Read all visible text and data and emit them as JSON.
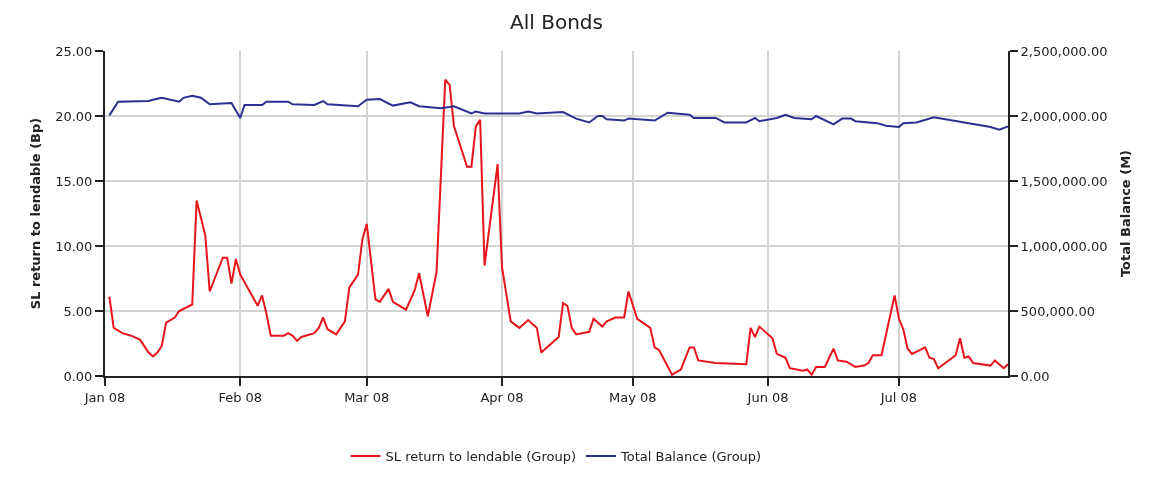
{
  "chart_data": {
    "type": "line",
    "title": "All Bonds",
    "ylabel": "SL return to lendable (Bp)",
    "y2label": "Total Balance (M)",
    "xlim": [
      "2008-01-01",
      "2008-07-26"
    ],
    "xticks": [
      {
        "value": "2008-01-01",
        "label": "Jan 08"
      },
      {
        "value": "2008-02-01",
        "label": "Feb 08"
      },
      {
        "value": "2008-03-01",
        "label": "Mar 08"
      },
      {
        "value": "2008-04-01",
        "label": "Apr 08"
      },
      {
        "value": "2008-05-01",
        "label": "May 08"
      },
      {
        "value": "2008-06-01",
        "label": "Jun 08"
      },
      {
        "value": "2008-07-01",
        "label": "Jul 08"
      }
    ],
    "ylim": [
      0,
      25
    ],
    "yticks": [
      {
        "value": 0,
        "label": "0.00"
      },
      {
        "value": 5,
        "label": "5.00"
      },
      {
        "value": 10,
        "label": "10.00"
      },
      {
        "value": 15,
        "label": "15.00"
      },
      {
        "value": 20,
        "label": "20.00"
      },
      {
        "value": 25,
        "label": "25.00"
      }
    ],
    "y2lim": [
      0,
      2500000
    ],
    "y2ticks": [
      {
        "value": 0,
        "label": "0.00"
      },
      {
        "value": 500000,
        "label": "500,000.00"
      },
      {
        "value": 1000000,
        "label": "1,000,000.00"
      },
      {
        "value": 1500000,
        "label": "1,500,000.00"
      },
      {
        "value": 2000000,
        "label": "2,000,000.00"
      },
      {
        "value": 2500000,
        "label": "2,500,000.00"
      }
    ],
    "grid": true,
    "legend": "bottom",
    "marker": "none",
    "line_style": "solid",
    "series": [
      {
        "name": "SL return to lendable (Group)",
        "color": "#e8141c",
        "x": [
          "2008-01-02",
          "2008-01-03",
          "2008-01-05",
          "2008-01-07",
          "2008-01-09",
          "2008-01-11",
          "2008-01-12",
          "2008-01-13",
          "2008-01-14",
          "2008-01-15",
          "2008-01-17",
          "2008-01-18",
          "2008-01-21",
          "2008-01-22",
          "2008-01-24",
          "2008-01-25",
          "2008-01-28",
          "2008-01-29",
          "2008-01-30",
          "2008-01-31",
          "2008-02-01",
          "2008-02-05",
          "2008-02-06",
          "2008-02-07",
          "2008-02-08",
          "2008-02-11",
          "2008-02-12",
          "2008-02-13",
          "2008-02-14",
          "2008-02-15",
          "2008-02-18",
          "2008-02-19",
          "2008-02-20",
          "2008-02-21",
          "2008-02-23",
          "2008-02-25",
          "2008-02-26",
          "2008-02-28",
          "2008-02-29",
          "2008-03-01",
          "2008-03-03",
          "2008-03-04",
          "2008-03-06",
          "2008-03-07",
          "2008-03-10",
          "2008-03-12",
          "2008-03-13",
          "2008-03-15",
          "2008-03-17",
          "2008-03-19",
          "2008-03-20",
          "2008-03-21",
          "2008-03-24",
          "2008-03-25",
          "2008-03-26",
          "2008-03-27",
          "2008-03-28",
          "2008-03-31",
          "2008-04-01",
          "2008-04-03",
          "2008-04-05",
          "2008-04-07",
          "2008-04-09",
          "2008-04-10",
          "2008-04-14",
          "2008-04-15",
          "2008-04-16",
          "2008-04-17",
          "2008-04-18",
          "2008-04-21",
          "2008-04-22",
          "2008-04-24",
          "2008-04-25",
          "2008-04-27",
          "2008-04-29",
          "2008-04-30",
          "2008-05-02",
          "2008-05-05",
          "2008-05-06",
          "2008-05-07",
          "2008-05-10",
          "2008-05-12",
          "2008-05-14",
          "2008-05-15",
          "2008-05-16",
          "2008-05-20",
          "2008-05-27",
          "2008-05-28",
          "2008-05-29",
          "2008-05-30",
          "2008-06-02",
          "2008-06-03",
          "2008-06-05",
          "2008-06-06",
          "2008-06-09",
          "2008-06-10",
          "2008-06-11",
          "2008-06-12",
          "2008-06-14",
          "2008-06-16",
          "2008-06-17",
          "2008-06-19",
          "2008-06-21",
          "2008-06-23",
          "2008-06-24",
          "2008-06-25",
          "2008-06-27",
          "2008-06-30",
          "2008-07-01",
          "2008-07-02",
          "2008-07-03",
          "2008-07-04",
          "2008-07-07",
          "2008-07-08",
          "2008-07-09",
          "2008-07-10",
          "2008-07-14",
          "2008-07-15",
          "2008-07-16",
          "2008-07-17",
          "2008-07-18",
          "2008-07-22",
          "2008-07-23",
          "2008-07-25",
          "2008-07-26"
        ],
        "values": [
          6.1,
          3.7,
          3.3,
          3.1,
          2.8,
          1.8,
          1.5,
          1.8,
          2.3,
          4.1,
          4.5,
          5.0,
          5.5,
          13.5,
          10.8,
          6.5,
          9.1,
          9.1,
          7.1,
          9.0,
          7.8,
          5.4,
          6.2,
          4.8,
          3.1,
          3.1,
          3.3,
          3.1,
          2.7,
          3.0,
          3.3,
          3.7,
          4.5,
          3.6,
          3.2,
          4.2,
          6.8,
          7.8,
          10.5,
          11.7,
          5.9,
          5.7,
          6.7,
          5.7,
          5.1,
          6.6,
          7.9,
          4.6,
          8.0,
          22.8,
          22.4,
          19.2,
          16.1,
          16.1,
          19.2,
          19.7,
          8.5,
          16.3,
          8.4,
          4.2,
          3.7,
          4.3,
          3.7,
          1.8,
          3.0,
          5.6,
          5.4,
          3.7,
          3.2,
          3.4,
          4.4,
          3.8,
          4.2,
          4.5,
          4.5,
          6.5,
          4.4,
          3.7,
          2.2,
          2.0,
          0.1,
          0.5,
          2.2,
          2.2,
          1.2,
          1.0,
          0.9,
          3.7,
          3.0,
          3.8,
          2.9,
          1.7,
          1.4,
          0.6,
          0.4,
          0.5,
          0.1,
          0.7,
          0.7,
          2.1,
          1.2,
          1.1,
          0.7,
          0.8,
          1.0,
          1.6,
          1.6,
          6.2,
          4.4,
          3.6,
          2.1,
          1.7,
          2.2,
          1.4,
          1.3,
          0.6,
          1.6,
          2.9,
          1.4,
          1.5,
          1.0,
          0.8,
          1.2,
          0.6,
          0.9
        ]
      },
      {
        "name": "Total Balance (Group)",
        "color": "#2b2f8f",
        "axis": "y2",
        "x": [
          "2008-01-02",
          "2008-01-04",
          "2008-01-11",
          "2008-01-12",
          "2008-01-14",
          "2008-01-16",
          "2008-01-18",
          "2008-01-19",
          "2008-01-21",
          "2008-01-23",
          "2008-01-25",
          "2008-01-30",
          "2008-02-01",
          "2008-02-02",
          "2008-02-06",
          "2008-02-07",
          "2008-02-12",
          "2008-02-13",
          "2008-02-18",
          "2008-02-20",
          "2008-02-21",
          "2008-02-28",
          "2008-03-01",
          "2008-03-04",
          "2008-03-07",
          "2008-03-11",
          "2008-03-13",
          "2008-03-18",
          "2008-03-21",
          "2008-03-25",
          "2008-03-26",
          "2008-03-28",
          "2008-04-05",
          "2008-04-07",
          "2008-04-09",
          "2008-04-15",
          "2008-04-18",
          "2008-04-21",
          "2008-04-23",
          "2008-04-24",
          "2008-04-25",
          "2008-04-29",
          "2008-04-30",
          "2008-05-06",
          "2008-05-09",
          "2008-05-14",
          "2008-05-15",
          "2008-05-20",
          "2008-05-22",
          "2008-05-27",
          "2008-05-29",
          "2008-05-30",
          "2008-06-03",
          "2008-06-05",
          "2008-06-07",
          "2008-06-11",
          "2008-06-12",
          "2008-06-16",
          "2008-06-18",
          "2008-06-20",
          "2008-06-21",
          "2008-06-26",
          "2008-06-28",
          "2008-07-01",
          "2008-07-02",
          "2008-07-05",
          "2008-07-09",
          "2008-07-22",
          "2008-07-24",
          "2008-07-26"
        ],
        "values": [
          2005000,
          2110000,
          2115000,
          2125000,
          2140000,
          2125000,
          2110000,
          2140000,
          2155000,
          2140000,
          2090000,
          2100000,
          1985000,
          2085000,
          2085000,
          2110000,
          2110000,
          2090000,
          2085000,
          2115000,
          2090000,
          2075000,
          2125000,
          2130000,
          2080000,
          2105000,
          2075000,
          2060000,
          2075000,
          2020000,
          2035000,
          2020000,
          2020000,
          2035000,
          2020000,
          2030000,
          1980000,
          1950000,
          2000000,
          2000000,
          1975000,
          1965000,
          1980000,
          1965000,
          2025000,
          2010000,
          1985000,
          1985000,
          1950000,
          1950000,
          1985000,
          1960000,
          1985000,
          2010000,
          1985000,
          1975000,
          2000000,
          1935000,
          1980000,
          1980000,
          1960000,
          1945000,
          1925000,
          1915000,
          1945000,
          1950000,
          1990000,
          1915000,
          1895000,
          1920000
        ]
      }
    ]
  }
}
